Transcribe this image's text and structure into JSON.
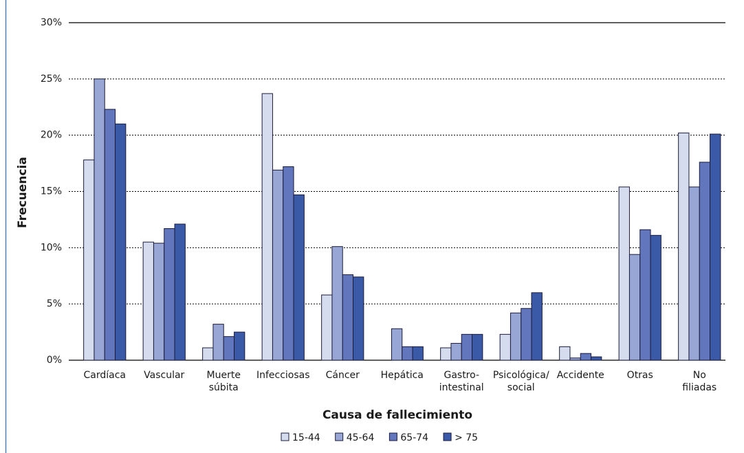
{
  "chart_data": {
    "type": "bar",
    "x_label": "Causa de fallecimiento",
    "y_label": "Frecuencia",
    "categories": [
      "Cardíaca",
      "Vascular",
      "Muerte\nsúbita",
      "Infecciosas",
      "Cáncer",
      "Hepática",
      "Gastro-\nintestinal",
      "Psicológica/\nsocial",
      "Accidente",
      "Otras",
      "No\nfiliadas"
    ],
    "series": [
      {
        "name": "15-44",
        "color": "#d5dcee",
        "values": [
          17.8,
          10.5,
          1.1,
          23.7,
          5.8,
          0,
          1.1,
          2.3,
          1.2,
          15.4,
          20.2
        ]
      },
      {
        "name": "45-64",
        "color": "#97a6d4",
        "values": [
          25,
          10.4,
          3.2,
          16.9,
          10.1,
          2.8,
          1.5,
          4.2,
          0.2,
          9.4,
          15.4
        ]
      },
      {
        "name": "65-74",
        "color": "#6176bd",
        "values": [
          22.3,
          11.7,
          2.1,
          17.2,
          7.6,
          1.2,
          2.3,
          4.6,
          0.6,
          11.6,
          17.6
        ]
      },
      {
        "name": "> 75",
        "color": "#3a5aa8",
        "values": [
          21,
          12.1,
          2.5,
          14.7,
          7.4,
          1.2,
          2.3,
          6.0,
          0.3,
          11.1,
          20.1
        ]
      }
    ],
    "ylim": [
      0,
      30
    ],
    "yticks": [
      {
        "value": 0,
        "label": "0%"
      },
      {
        "value": 5,
        "label": "5%"
      },
      {
        "value": 10,
        "label": "10%"
      },
      {
        "value": 15,
        "label": "15%"
      },
      {
        "value": 20,
        "label": "20%"
      },
      {
        "value": 25,
        "label": "25%"
      },
      {
        "value": 30,
        "label": "30%"
      }
    ],
    "grid": true,
    "legend": "bottom"
  }
}
